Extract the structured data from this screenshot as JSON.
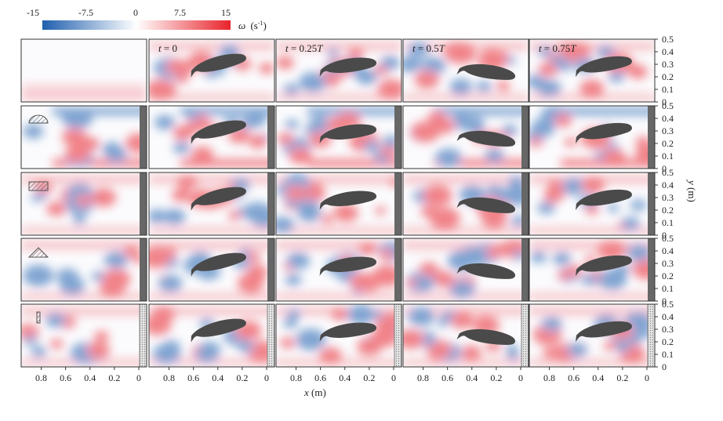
{
  "chart_data": {
    "type": "heatmap",
    "colorbar": {
      "min": -15,
      "max": 15,
      "ticks": [
        "-15",
        "-7.5",
        "0",
        "7.5",
        "15"
      ],
      "label_symbol": "ω",
      "label_unit": "(s",
      "label_exp": "-1",
      "label_close": ")",
      "colors": {
        "negative": "#1f5fae",
        "zero": "#ffffff",
        "positive": "#e8232a"
      }
    },
    "time_labels": [
      {
        "prefix": "t",
        "value": " = 0",
        "suffix": ""
      },
      {
        "prefix": "t",
        "value": " = 0.25",
        "suffix": "T"
      },
      {
        "prefix": "t",
        "value": " = 0.5",
        "suffix": "T"
      },
      {
        "prefix": "t",
        "value": " = 0.75",
        "suffix": "T"
      }
    ],
    "x_ticks": [
      "0.8",
      "0.6",
      "0.4",
      "0.2",
      "0"
    ],
    "x_tick_values": [
      0.8,
      0.6,
      0.4,
      0.2,
      0
    ],
    "xlim": [
      0.9,
      0
    ],
    "x_label_var": "x",
    "x_label_unit": " (m)",
    "y_ticks": [
      "0.5",
      "0.4",
      "0.3",
      "0.2",
      "0.1",
      "0"
    ],
    "y_tick_values": [
      0.5,
      0.4,
      0.3,
      0.2,
      0.1,
      0
    ],
    "ylim": [
      0,
      0.5
    ],
    "y_label_var": "y",
    "y_label_unit": " (m)",
    "rows": [
      {
        "obstacle": "none",
        "wall": "none"
      },
      {
        "obstacle": "semicircle",
        "wall": "solid"
      },
      {
        "obstacle": "rectangle",
        "wall": "solid"
      },
      {
        "obstacle": "triangle",
        "wall": "solid"
      },
      {
        "obstacle": "thin-plate",
        "wall": "porous"
      }
    ],
    "grid": false
  }
}
